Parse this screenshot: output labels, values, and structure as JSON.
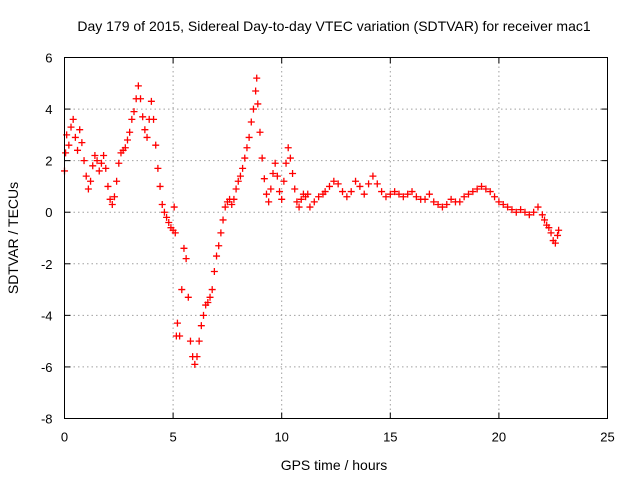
{
  "chart_data": {
    "type": "scatter",
    "title": "Day 179 of 2015, Sidereal Day-to-day VTEC variation (SDTVAR) for receiver mac1",
    "xlabel": "GPS time / hours",
    "ylabel": "SDTVAR / TECUs",
    "xlim": [
      0,
      25
    ],
    "ylim": [
      -8,
      6
    ],
    "xticks": [
      0,
      5,
      10,
      15,
      20,
      25
    ],
    "yticks": [
      -8,
      -6,
      -4,
      -2,
      0,
      2,
      4,
      6
    ],
    "grid": true,
    "marker": "+",
    "marker_color": "#ff0000",
    "series": [
      {
        "name": "mac1",
        "points": [
          [
            0.0,
            1.6
          ],
          [
            0.05,
            2.3
          ],
          [
            0.1,
            3.0
          ],
          [
            0.2,
            2.6
          ],
          [
            0.3,
            3.3
          ],
          [
            0.4,
            3.6
          ],
          [
            0.5,
            2.9
          ],
          [
            0.6,
            2.4
          ],
          [
            0.7,
            3.2
          ],
          [
            0.8,
            2.7
          ],
          [
            0.9,
            2.0
          ],
          [
            1.0,
            1.4
          ],
          [
            1.1,
            0.9
          ],
          [
            1.2,
            1.2
          ],
          [
            1.3,
            1.8
          ],
          [
            1.4,
            2.2
          ],
          [
            1.5,
            2.0
          ],
          [
            1.6,
            1.6
          ],
          [
            1.7,
            1.9
          ],
          [
            1.8,
            2.2
          ],
          [
            1.9,
            1.7
          ],
          [
            2.0,
            1.0
          ],
          [
            2.1,
            0.5
          ],
          [
            2.2,
            0.3
          ],
          [
            2.3,
            0.6
          ],
          [
            2.4,
            1.2
          ],
          [
            2.5,
            1.9
          ],
          [
            2.6,
            2.3
          ],
          [
            2.7,
            2.4
          ],
          [
            2.8,
            2.5
          ],
          [
            2.9,
            2.8
          ],
          [
            3.0,
            3.1
          ],
          [
            3.1,
            3.6
          ],
          [
            3.2,
            3.9
          ],
          [
            3.3,
            4.4
          ],
          [
            3.4,
            4.9
          ],
          [
            3.5,
            4.4
          ],
          [
            3.6,
            3.7
          ],
          [
            3.7,
            3.2
          ],
          [
            3.8,
            2.9
          ],
          [
            3.9,
            3.6
          ],
          [
            4.0,
            4.3
          ],
          [
            4.1,
            3.6
          ],
          [
            4.2,
            2.6
          ],
          [
            4.3,
            1.7
          ],
          [
            4.4,
            1.0
          ],
          [
            4.5,
            0.3
          ],
          [
            4.6,
            0.0
          ],
          [
            4.7,
            -0.2
          ],
          [
            4.8,
            -0.4
          ],
          [
            4.9,
            -0.6
          ],
          [
            5.0,
            -0.7
          ],
          [
            5.05,
            0.2
          ],
          [
            5.1,
            -0.8
          ],
          [
            5.15,
            -4.8
          ],
          [
            5.2,
            -4.3
          ],
          [
            5.3,
            -4.8
          ],
          [
            5.4,
            -3.0
          ],
          [
            5.5,
            -1.4
          ],
          [
            5.6,
            -1.8
          ],
          [
            5.7,
            -3.3
          ],
          [
            5.8,
            -5.0
          ],
          [
            5.9,
            -5.6
          ],
          [
            6.0,
            -5.9
          ],
          [
            6.1,
            -5.6
          ],
          [
            6.2,
            -5.0
          ],
          [
            6.3,
            -4.4
          ],
          [
            6.4,
            -4.0
          ],
          [
            6.5,
            -3.6
          ],
          [
            6.6,
            -3.5
          ],
          [
            6.7,
            -3.3
          ],
          [
            6.8,
            -3.0
          ],
          [
            6.9,
            -2.3
          ],
          [
            7.0,
            -1.7
          ],
          [
            7.1,
            -1.3
          ],
          [
            7.2,
            -0.8
          ],
          [
            7.3,
            -0.3
          ],
          [
            7.4,
            0.2
          ],
          [
            7.5,
            0.4
          ],
          [
            7.6,
            0.5
          ],
          [
            7.7,
            0.3
          ],
          [
            7.8,
            0.5
          ],
          [
            7.9,
            0.9
          ],
          [
            8.0,
            1.2
          ],
          [
            8.1,
            1.4
          ],
          [
            8.2,
            1.7
          ],
          [
            8.3,
            2.1
          ],
          [
            8.4,
            2.5
          ],
          [
            8.5,
            2.9
          ],
          [
            8.6,
            3.5
          ],
          [
            8.7,
            4.0
          ],
          [
            8.8,
            4.7
          ],
          [
            8.85,
            5.2
          ],
          [
            8.9,
            4.2
          ],
          [
            9.0,
            3.1
          ],
          [
            9.1,
            2.1
          ],
          [
            9.2,
            1.3
          ],
          [
            9.3,
            0.7
          ],
          [
            9.4,
            0.4
          ],
          [
            9.5,
            0.9
          ],
          [
            9.6,
            1.5
          ],
          [
            9.7,
            1.9
          ],
          [
            9.8,
            1.4
          ],
          [
            9.9,
            0.8
          ],
          [
            10.0,
            0.5
          ],
          [
            10.1,
            1.2
          ],
          [
            10.2,
            1.9
          ],
          [
            10.3,
            2.5
          ],
          [
            10.4,
            2.1
          ],
          [
            10.5,
            1.5
          ],
          [
            10.6,
            0.9
          ],
          [
            10.7,
            0.4
          ],
          [
            10.8,
            0.2
          ],
          [
            10.9,
            0.5
          ],
          [
            11.0,
            0.7
          ],
          [
            11.1,
            0.6
          ],
          [
            11.2,
            0.7
          ],
          [
            11.3,
            0.2
          ],
          [
            11.5,
            0.4
          ],
          [
            11.7,
            0.6
          ],
          [
            11.9,
            0.7
          ],
          [
            12.0,
            0.8
          ],
          [
            12.2,
            1.0
          ],
          [
            12.4,
            1.2
          ],
          [
            12.6,
            1.1
          ],
          [
            12.8,
            0.8
          ],
          [
            13.0,
            0.6
          ],
          [
            13.2,
            0.8
          ],
          [
            13.4,
            1.2
          ],
          [
            13.6,
            1.0
          ],
          [
            13.8,
            0.7
          ],
          [
            14.0,
            1.1
          ],
          [
            14.2,
            1.4
          ],
          [
            14.4,
            1.1
          ],
          [
            14.6,
            0.8
          ],
          [
            14.8,
            0.6
          ],
          [
            15.0,
            0.7
          ],
          [
            15.2,
            0.8
          ],
          [
            15.4,
            0.7
          ],
          [
            15.6,
            0.6
          ],
          [
            15.8,
            0.7
          ],
          [
            16.0,
            0.8
          ],
          [
            16.2,
            0.6
          ],
          [
            16.4,
            0.5
          ],
          [
            16.6,
            0.5
          ],
          [
            16.8,
            0.7
          ],
          [
            17.0,
            0.4
          ],
          [
            17.2,
            0.3
          ],
          [
            17.4,
            0.2
          ],
          [
            17.6,
            0.3
          ],
          [
            17.8,
            0.5
          ],
          [
            18.0,
            0.4
          ],
          [
            18.2,
            0.4
          ],
          [
            18.4,
            0.6
          ],
          [
            18.6,
            0.7
          ],
          [
            18.8,
            0.8
          ],
          [
            19.0,
            0.9
          ],
          [
            19.2,
            1.0
          ],
          [
            19.4,
            0.9
          ],
          [
            19.6,
            0.8
          ],
          [
            19.8,
            0.6
          ],
          [
            20.0,
            0.4
          ],
          [
            20.2,
            0.3
          ],
          [
            20.4,
            0.2
          ],
          [
            20.6,
            0.1
          ],
          [
            20.8,
            0.0
          ],
          [
            21.0,
            0.1
          ],
          [
            21.2,
            0.0
          ],
          [
            21.4,
            -0.1
          ],
          [
            21.6,
            0.0
          ],
          [
            21.8,
            0.2
          ],
          [
            22.0,
            -0.1
          ],
          [
            22.1,
            -0.3
          ],
          [
            22.2,
            -0.5
          ],
          [
            22.3,
            -0.6
          ],
          [
            22.4,
            -0.8
          ],
          [
            22.5,
            -1.1
          ],
          [
            22.6,
            -1.2
          ],
          [
            22.7,
            -0.9
          ],
          [
            22.75,
            -0.7
          ]
        ]
      }
    ]
  }
}
